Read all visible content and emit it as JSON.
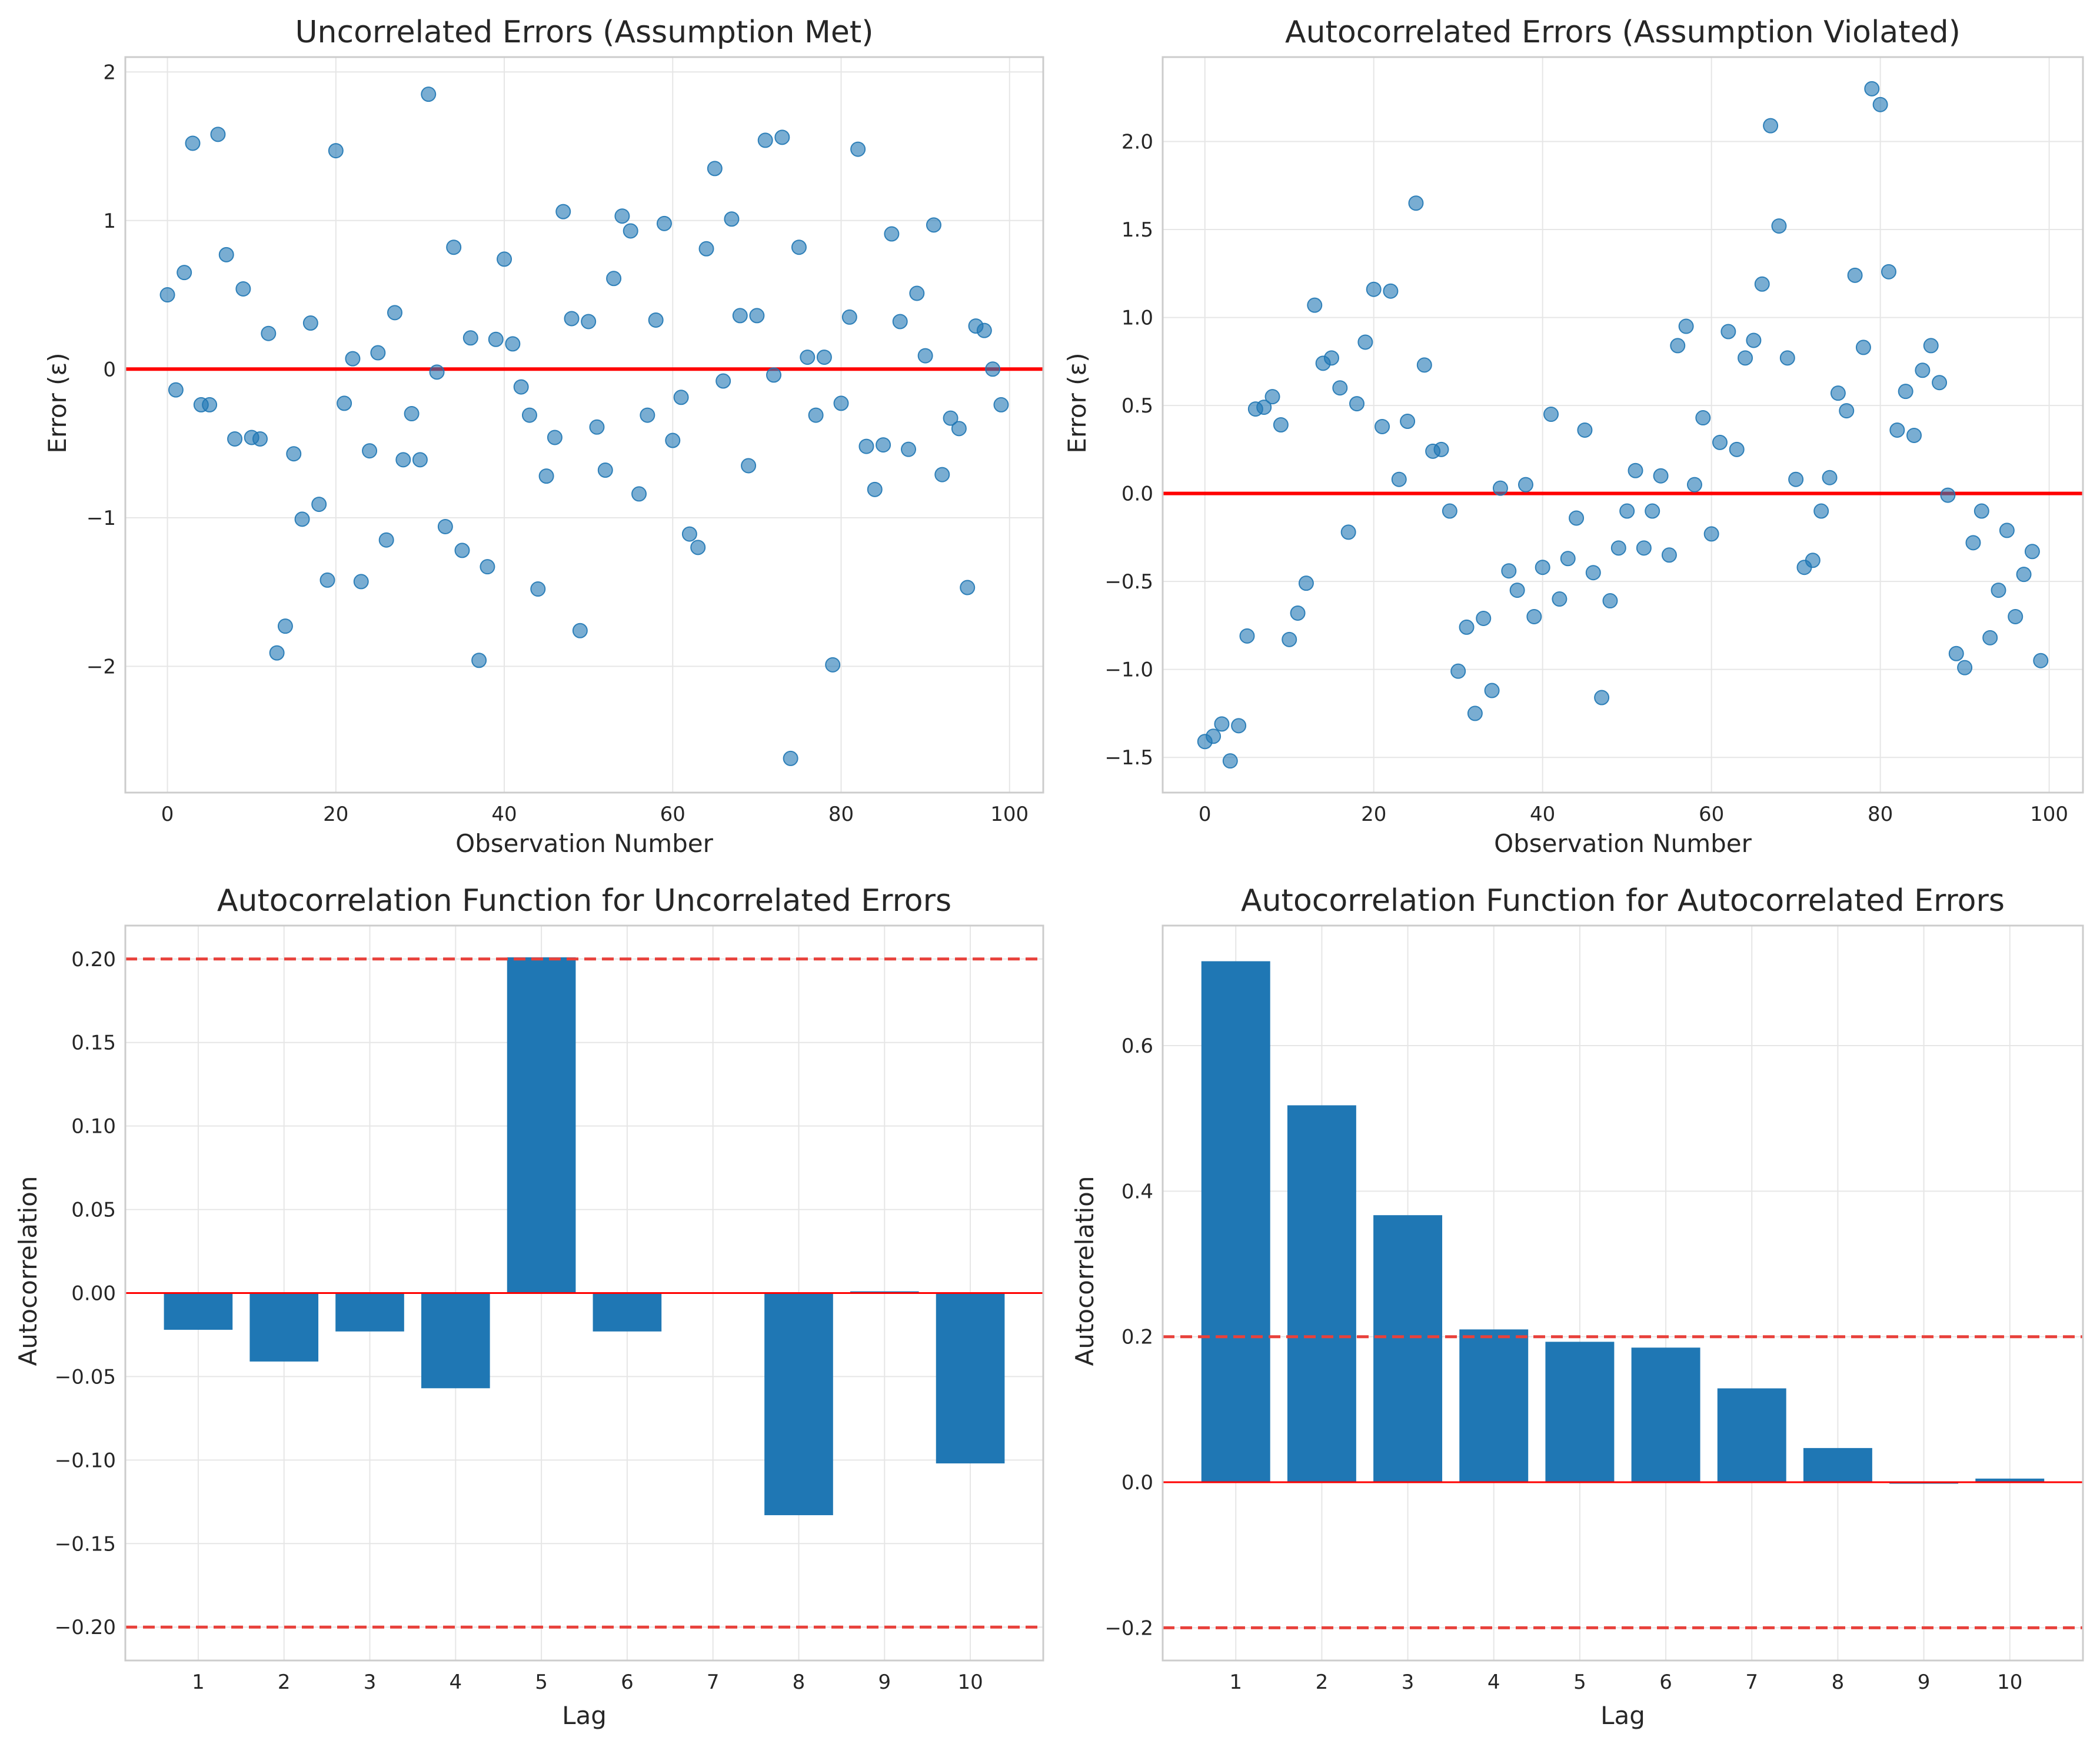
{
  "colors": {
    "point": "#1f77b4",
    "bar": "#1f77b4",
    "zero_line": "#ff0000",
    "band_line": "#e8413b"
  },
  "chart_data": [
    {
      "type": "scatter",
      "title": "Uncorrelated Errors (Assumption Met)",
      "xlabel": "Observation Number",
      "ylabel": "Error (ε)",
      "xlim": [
        -5,
        104
      ],
      "ylim": [
        -2.85,
        2.1
      ],
      "xticks": [
        0,
        20,
        40,
        60,
        80,
        100
      ],
      "yticks": [
        -2,
        -1,
        0,
        1,
        2
      ],
      "tick_labels_x": [
        "0",
        "20",
        "40",
        "60",
        "80",
        "100"
      ],
      "tick_labels_y": [
        "−2",
        "−1",
        "0",
        "1",
        "2"
      ],
      "grid": true,
      "reference_lines": [
        {
          "y": 0,
          "style": "solid",
          "color": "red"
        }
      ],
      "x": [
        0,
        1,
        2,
        3,
        4,
        5,
        6,
        7,
        8,
        9,
        10,
        11,
        12,
        13,
        14,
        15,
        16,
        17,
        18,
        19,
        20,
        21,
        22,
        23,
        24,
        25,
        26,
        27,
        28,
        29,
        30,
        31,
        32,
        33,
        34,
        35,
        36,
        37,
        38,
        39,
        40,
        41,
        42,
        43,
        44,
        45,
        46,
        47,
        48,
        49,
        50,
        51,
        52,
        53,
        54,
        55,
        56,
        57,
        58,
        59,
        60,
        61,
        62,
        63,
        64,
        65,
        66,
        67,
        68,
        69,
        70,
        71,
        72,
        73,
        74,
        75,
        76,
        77,
        78,
        79,
        80,
        81,
        82,
        83,
        84,
        85,
        86,
        87,
        88,
        89,
        90,
        91,
        92,
        93,
        94,
        95,
        96,
        97,
        98,
        99
      ],
      "y": [
        0.5,
        -0.14,
        0.65,
        1.52,
        -0.24,
        -0.24,
        1.58,
        0.77,
        -0.47,
        0.54,
        -0.46,
        -0.47,
        0.24,
        -1.91,
        -1.73,
        -0.57,
        -1.01,
        0.31,
        -0.91,
        -1.42,
        1.47,
        -0.23,
        0.07,
        -1.43,
        -0.55,
        0.11,
        -1.15,
        0.38,
        -0.61,
        -0.3,
        -0.61,
        1.85,
        -0.02,
        -1.06,
        0.82,
        -1.22,
        0.21,
        -1.96,
        -1.33,
        0.2,
        0.74,
        0.17,
        -0.12,
        -0.31,
        -1.48,
        -0.72,
        -0.46,
        1.06,
        0.34,
        -1.76,
        0.32,
        -0.39,
        -0.68,
        0.61,
        1.03,
        0.93,
        -0.84,
        -0.31,
        0.33,
        0.98,
        -0.48,
        -0.19,
        -1.11,
        -1.2,
        0.81,
        1.35,
        -0.08,
        1.01,
        0.36,
        -0.65,
        0.36,
        1.54,
        -0.04,
        1.56,
        -2.62,
        0.82,
        0.08,
        -0.31,
        0.08,
        -1.99,
        -0.23,
        0.35,
        1.48,
        -0.52,
        -0.81,
        -0.51,
        0.91,
        0.32,
        -0.54,
        0.51,
        0.09,
        0.97,
        -0.71,
        -0.33,
        -0.4,
        -1.47,
        0.29,
        0.26,
        0.0,
        -0.24
      ]
    },
    {
      "type": "scatter",
      "title": "Autocorrelated Errors (Assumption Violated)",
      "xlabel": "Observation Number",
      "ylabel": "Error (ε)",
      "xlim": [
        -5,
        104
      ],
      "ylim": [
        -1.7,
        2.48
      ],
      "xticks": [
        0,
        20,
        40,
        60,
        80,
        100
      ],
      "yticks": [
        -1.5,
        -1.0,
        -0.5,
        0.0,
        0.5,
        1.0,
        1.5,
        2.0
      ],
      "tick_labels_x": [
        "0",
        "20",
        "40",
        "60",
        "80",
        "100"
      ],
      "tick_labels_y": [
        "−1.5",
        "−1.0",
        "−0.5",
        "0.0",
        "0.5",
        "1.0",
        "1.5",
        "2.0"
      ],
      "grid": true,
      "reference_lines": [
        {
          "y": 0,
          "style": "solid",
          "color": "red"
        }
      ],
      "x": [
        0,
        1,
        2,
        3,
        4,
        5,
        6,
        7,
        8,
        9,
        10,
        11,
        12,
        13,
        14,
        15,
        16,
        17,
        18,
        19,
        20,
        21,
        22,
        23,
        24,
        25,
        26,
        27,
        28,
        29,
        30,
        31,
        32,
        33,
        34,
        35,
        36,
        37,
        38,
        39,
        40,
        41,
        42,
        43,
        44,
        45,
        46,
        47,
        48,
        49,
        50,
        51,
        52,
        53,
        54,
        55,
        56,
        57,
        58,
        59,
        60,
        61,
        62,
        63,
        64,
        65,
        66,
        67,
        68,
        69,
        70,
        71,
        72,
        73,
        74,
        75,
        76,
        77,
        78,
        79,
        80,
        81,
        82,
        83,
        84,
        85,
        86,
        87,
        88,
        89,
        90,
        91,
        92,
        93,
        94,
        95,
        96,
        97,
        98,
        99
      ],
      "y": [
        -1.41,
        -1.38,
        -1.31,
        -1.52,
        -1.32,
        -0.81,
        0.48,
        0.49,
        0.55,
        0.39,
        -0.83,
        -0.68,
        -0.51,
        1.07,
        0.74,
        0.77,
        0.6,
        -0.22,
        0.51,
        0.86,
        1.16,
        0.38,
        1.15,
        0.08,
        0.41,
        1.65,
        0.73,
        0.24,
        0.25,
        -0.1,
        -1.01,
        -0.76,
        -1.25,
        -0.71,
        -1.12,
        0.03,
        -0.44,
        -0.55,
        0.05,
        -0.7,
        -0.42,
        0.45,
        -0.6,
        -0.37,
        -0.14,
        0.36,
        -0.45,
        -1.16,
        -0.61,
        -0.31,
        -0.1,
        0.13,
        -0.31,
        -0.1,
        0.1,
        -0.35,
        0.84,
        0.95,
        0.05,
        0.43,
        -0.23,
        0.29,
        0.92,
        0.25,
        0.77,
        0.87,
        1.19,
        2.09,
        1.52,
        0.77,
        0.08,
        -0.42,
        -0.38,
        -0.1,
        0.09,
        0.57,
        0.47,
        1.24,
        0.83,
        2.3,
        2.21,
        1.26,
        0.36,
        0.58,
        0.33,
        0.7,
        0.84,
        0.63,
        -0.01,
        -0.91,
        -0.99,
        -0.28,
        -0.1,
        -0.82,
        -0.55,
        -0.21,
        -0.7,
        -0.46,
        -0.33,
        -0.95
      ]
    },
    {
      "type": "bar",
      "title": "Autocorrelation Function for Uncorrelated Errors",
      "xlabel": "Lag",
      "ylabel": "Autocorrelation",
      "categories": [
        "1",
        "2",
        "3",
        "4",
        "5",
        "6",
        "7",
        "8",
        "9",
        "10"
      ],
      "values": [
        -0.022,
        -0.041,
        -0.023,
        -0.057,
        0.201,
        -0.023,
        0.0,
        -0.133,
        0.001,
        -0.102
      ],
      "xlim": [
        0.15,
        10.85
      ],
      "ylim": [
        -0.22,
        0.22
      ],
      "yticks": [
        -0.2,
        -0.15,
        -0.1,
        -0.05,
        0.0,
        0.05,
        0.1,
        0.15,
        0.2
      ],
      "tick_labels_y": [
        "−0.20",
        "−0.15",
        "−0.10",
        "−0.05",
        "0.00",
        "0.05",
        "0.10",
        "0.15",
        "0.20"
      ],
      "grid": true,
      "reference_lines": [
        {
          "y": 0,
          "style": "solid",
          "color": "red"
        },
        {
          "y": 0.2,
          "style": "dashed",
          "color": "red"
        },
        {
          "y": -0.2,
          "style": "dashed",
          "color": "red"
        }
      ]
    },
    {
      "type": "bar",
      "title": "Autocorrelation Function for Autocorrelated Errors",
      "xlabel": "Lag",
      "ylabel": "Autocorrelation",
      "categories": [
        "1",
        "2",
        "3",
        "4",
        "5",
        "6",
        "7",
        "8",
        "9",
        "10"
      ],
      "values": [
        0.716,
        0.518,
        0.367,
        0.21,
        0.193,
        0.185,
        0.129,
        0.047,
        -0.002,
        0.005
      ],
      "xlim": [
        0.15,
        10.85
      ],
      "ylim": [
        -0.245,
        0.765
      ],
      "yticks": [
        -0.2,
        0.0,
        0.2,
        0.4,
        0.6
      ],
      "tick_labels_y": [
        "−0.2",
        "0.0",
        "0.2",
        "0.4",
        "0.6"
      ],
      "grid": true,
      "reference_lines": [
        {
          "y": 0,
          "style": "solid",
          "color": "red"
        },
        {
          "y": 0.2,
          "style": "dashed",
          "color": "red"
        },
        {
          "y": -0.2,
          "style": "dashed",
          "color": "red"
        }
      ]
    }
  ]
}
